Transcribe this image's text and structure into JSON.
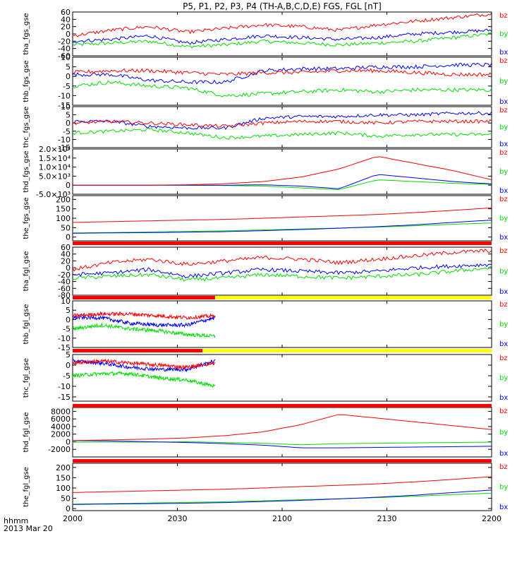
{
  "chart_data": {
    "type": "line",
    "title": "P5, P1, P2, P3, P4 (TH-A,B,C,D,E) FGS, FGL [nT]",
    "time_label_line1": "hhmm",
    "time_label_line2": "2013 Mar 20",
    "time_ticks": [
      "2000",
      "2030",
      "2100",
      "2130",
      "2200"
    ],
    "legend": [
      "bz",
      "by",
      "bx"
    ],
    "colors": {
      "bz": "#ff0000",
      "by": "#00dd00",
      "bx": "#0000ff",
      "flag_red": "#ff0000",
      "flag_yellow": "#ffff00"
    },
    "panels": [
      {
        "ylabel": "tha_fgs_gse",
        "ylim": [
          -60,
          60
        ],
        "ticks": [
          "-60",
          "-40",
          "-20",
          "0",
          "20",
          "40",
          "60"
        ],
        "series": {
          "bz": [
            -5,
            10,
            20,
            5,
            15,
            25,
            20,
            10,
            25,
            35,
            45,
            55
          ],
          "by": [
            -30,
            -25,
            -20,
            -35,
            -30,
            -20,
            -25,
            -30,
            -25,
            -20,
            -10,
            0
          ],
          "bx": [
            -20,
            -15,
            -5,
            -25,
            -15,
            -5,
            -10,
            -15,
            -10,
            0,
            5,
            10
          ]
        }
      },
      {
        "ylabel": "thb_fgs_gse",
        "ylim": [
          -15,
          10
        ],
        "ticks": [
          "-15",
          "-10",
          "-5",
          "0",
          "5",
          "10"
        ],
        "series": {
          "bz": [
            2,
            3,
            3,
            2,
            1,
            2,
            2,
            3,
            3,
            2,
            1,
            1
          ],
          "by": [
            -5,
            -3,
            -5,
            -6,
            -10,
            -9,
            -8,
            -7,
            -8,
            -7,
            -7,
            -7
          ],
          "bx": [
            1,
            1,
            -2,
            -3,
            -3,
            3,
            4,
            4,
            5,
            5,
            6,
            6
          ]
        }
      },
      {
        "ylabel": "thc_fgs_gse",
        "ylim": [
          -15,
          10
        ],
        "ticks": [
          "-15",
          "-10",
          "-5",
          "0",
          "5",
          "10"
        ],
        "series": {
          "bz": [
            0,
            1,
            0,
            -1,
            -2,
            0,
            1,
            1,
            0,
            1,
            1,
            1
          ],
          "by": [
            -6,
            -5,
            -4,
            -6,
            -9,
            -8,
            -7,
            -6,
            -8,
            -7,
            -7,
            -7
          ],
          "bx": [
            1,
            1,
            -2,
            -3,
            -3,
            3,
            4,
            4,
            5,
            5,
            6,
            6
          ]
        }
      },
      {
        "ylabel": "thd_fgs_gse",
        "ylim": [
          -5000,
          20000
        ],
        "ticks": [
          "-5.0×10³",
          "0",
          "5.0×10³",
          "1.0×10⁴",
          "1.5×10⁴",
          "2.0×10⁴"
        ],
        "series": {
          "bz": [
            0,
            0,
            0,
            200,
            800,
            2000,
            4500,
            9000,
            16000,
            12000,
            8000,
            3000
          ],
          "by": [
            0,
            0,
            0,
            0,
            -200,
            -500,
            -1500,
            -2500,
            3000,
            2000,
            1000,
            500
          ],
          "bx": [
            0,
            0,
            0,
            0,
            0,
            200,
            -500,
            -2000,
            6000,
            4000,
            2000,
            700
          ]
        }
      },
      {
        "ylabel": "the_fgs_gse",
        "ylim": [
          -20,
          220
        ],
        "ticks": [
          "0",
          "50",
          "100",
          "150",
          "200"
        ],
        "series": {
          "bz": [
            78,
            82,
            86,
            90,
            94,
            100,
            107,
            113,
            120,
            130,
            142,
            155
          ],
          "by": [
            22,
            24,
            27,
            30,
            33,
            38,
            43,
            48,
            53,
            60,
            68,
            75
          ],
          "bx": [
            20,
            22,
            24,
            26,
            29,
            34,
            40,
            47,
            55,
            65,
            78,
            90
          ]
        }
      },
      {
        "ylabel": "tha_fgl_gse",
        "ylim": [
          -80,
          60
        ],
        "ticks": [
          "-80",
          "-60",
          "-40",
          "-20",
          "0",
          "20",
          "40",
          "60"
        ],
        "series": {
          "bz": [
            -5,
            15,
            25,
            10,
            20,
            30,
            25,
            15,
            25,
            35,
            45,
            50
          ],
          "by": [
            -30,
            -25,
            -20,
            -35,
            -30,
            -20,
            -25,
            -30,
            -25,
            -20,
            -10,
            0
          ],
          "bx": [
            -20,
            -15,
            -5,
            -25,
            -15,
            -5,
            -10,
            -15,
            -10,
            0,
            5,
            10
          ]
        }
      },
      {
        "ylabel": "thb_fgl_gse",
        "ylim": [
          -15,
          10
        ],
        "ticks": [
          "-15",
          "-10",
          "-5",
          "0",
          "5",
          "10"
        ],
        "end_fraction": 0.34,
        "series": {
          "bz": [
            2,
            3,
            3,
            2,
            1,
            2
          ],
          "by": [
            -5,
            -3,
            -5,
            -6,
            -8,
            -9
          ],
          "bx": [
            1,
            1,
            -2,
            -3,
            -3,
            1
          ]
        }
      },
      {
        "ylabel": "thc_fgl_gse",
        "ylim": [
          -17,
          5
        ],
        "ticks": [
          "-15",
          "-10",
          "-5",
          "0",
          "5"
        ],
        "end_fraction": 0.34,
        "series": {
          "bz": [
            1,
            2,
            1,
            0,
            -1,
            1
          ],
          "by": [
            -5,
            -4,
            -4,
            -6,
            -7,
            -10
          ],
          "bx": [
            2,
            1,
            -1,
            -2,
            -2,
            2
          ]
        }
      },
      {
        "ylabel": "thd_fgl_gse",
        "ylim": [
          -4000,
          9000
        ],
        "ticks": [
          "-2000",
          "0",
          "2000",
          "4000",
          "6000",
          "8000"
        ],
        "series": {
          "bz": [
            300,
            500,
            700,
            1000,
            1600,
            2600,
            4500,
            7200,
            6200,
            5200,
            4200,
            3200
          ],
          "by": [
            -100,
            -100,
            -100,
            0,
            -200,
            -400,
            -800,
            -500,
            -400,
            -300,
            -200,
            -100
          ],
          "bx": [
            300,
            200,
            0,
            -200,
            -500,
            -900,
            -1600,
            -1600,
            -1500,
            -1400,
            -1300,
            -1200
          ]
        }
      },
      {
        "ylabel": "the_fgl_gse",
        "ylim": [
          -10,
          220
        ],
        "ticks": [
          "0",
          "50",
          "100",
          "150",
          "200"
        ],
        "series": {
          "bz": [
            78,
            82,
            86,
            90,
            94,
            100,
            107,
            113,
            120,
            130,
            142,
            155
          ],
          "by": [
            22,
            24,
            27,
            30,
            33,
            38,
            43,
            48,
            53,
            60,
            68,
            75
          ],
          "bx": [
            20,
            22,
            24,
            26,
            29,
            34,
            40,
            47,
            55,
            65,
            78,
            90
          ]
        }
      }
    ],
    "flag_bars": [
      {
        "after_panel": 4,
        "red_fraction": 1.0
      },
      {
        "after_panel": 5,
        "red_fraction": 0.34
      },
      {
        "after_panel": 6,
        "red_fraction": 0.31
      },
      {
        "after_panel": 7,
        "red_fraction": 1.0
      },
      {
        "after_panel": 8,
        "red_fraction": 1.0
      }
    ]
  }
}
